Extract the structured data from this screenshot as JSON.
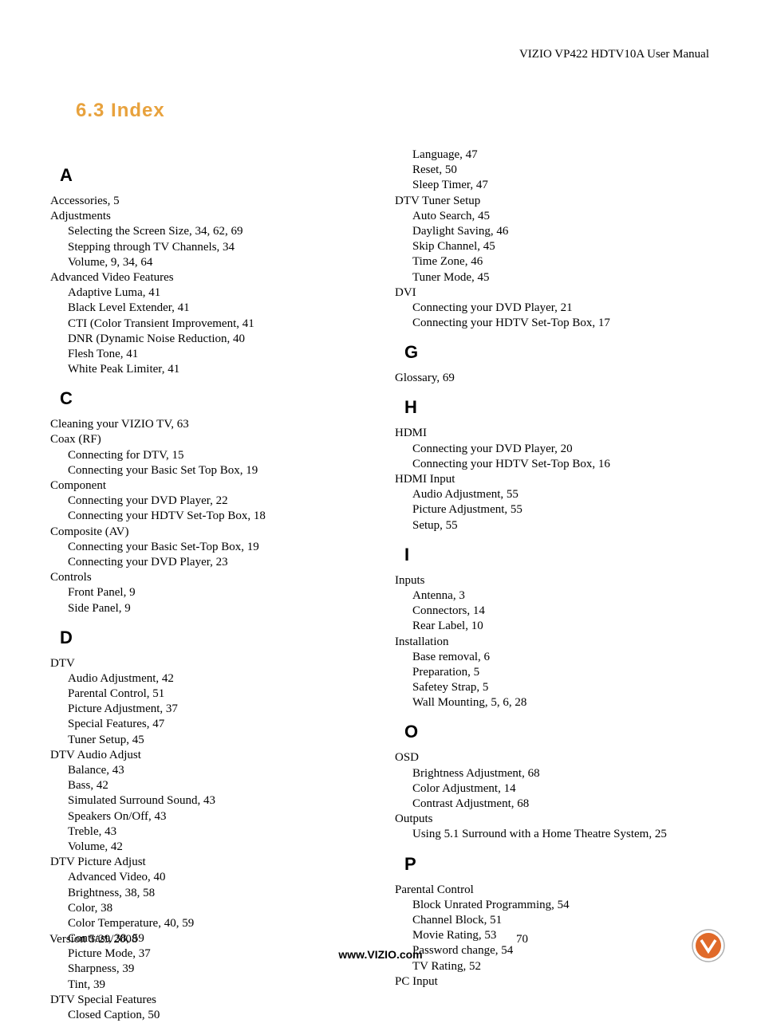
{
  "header": "VIZIO VP422 HDTV10A User Manual",
  "section_title": "6.3 Index",
  "section_title_color": "#e8a23d",
  "colors": {
    "text": "#000000",
    "accent": "#e8a23d",
    "logo_fill": "#e06a2a",
    "logo_border": "#b0b0b0"
  },
  "col1": [
    {
      "type": "letter",
      "text": "A"
    },
    {
      "type": "top",
      "text": "Accessories, 5"
    },
    {
      "type": "top",
      "text": "Adjustments"
    },
    {
      "type": "sub",
      "text": "Selecting the Screen Size, 34, 62, 69"
    },
    {
      "type": "sub",
      "text": "Stepping through TV Channels, 34"
    },
    {
      "type": "sub",
      "text": "Volume, 9, 34, 64"
    },
    {
      "type": "top",
      "text": "Advanced Video Features"
    },
    {
      "type": "sub",
      "text": "Adaptive Luma, 41"
    },
    {
      "type": "sub",
      "text": "Black Level Extender, 41"
    },
    {
      "type": "sub",
      "text": "CTI (Color Transient Improvement, 41"
    },
    {
      "type": "sub",
      "text": "DNR (Dynamic Noise Reduction, 40"
    },
    {
      "type": "sub",
      "text": "Flesh Tone, 41"
    },
    {
      "type": "sub",
      "text": "White Peak Limiter, 41"
    },
    {
      "type": "letter",
      "text": "C"
    },
    {
      "type": "top",
      "text": "Cleaning your VIZIO TV, 63"
    },
    {
      "type": "top",
      "text": "Coax (RF)"
    },
    {
      "type": "sub",
      "text": "Connecting for DTV, 15"
    },
    {
      "type": "sub",
      "text": "Connecting your Basic Set Top Box, 19"
    },
    {
      "type": "top",
      "text": "Component"
    },
    {
      "type": "sub",
      "text": "Connecting your DVD Player, 22"
    },
    {
      "type": "sub",
      "text": "Connecting your HDTV Set-Top Box, 18"
    },
    {
      "type": "top",
      "text": "Composite (AV)"
    },
    {
      "type": "sub",
      "text": "Connecting your Basic Set-Top Box, 19"
    },
    {
      "type": "sub",
      "text": "Connecting your DVD Player, 23"
    },
    {
      "type": "top",
      "text": "Controls"
    },
    {
      "type": "sub",
      "text": "Front Panel, 9"
    },
    {
      "type": "sub",
      "text": "Side Panel, 9"
    },
    {
      "type": "letter",
      "text": "D"
    },
    {
      "type": "top",
      "text": "DTV"
    },
    {
      "type": "sub",
      "text": "Audio Adjustment, 42"
    },
    {
      "type": "sub",
      "text": "Parental Control, 51"
    },
    {
      "type": "sub",
      "text": "Picture Adjustment, 37"
    },
    {
      "type": "sub",
      "text": "Special Features, 47"
    },
    {
      "type": "sub",
      "text": "Tuner Setup, 45"
    },
    {
      "type": "top",
      "text": "DTV Audio Adjust"
    },
    {
      "type": "sub",
      "text": "Balance, 43"
    },
    {
      "type": "sub",
      "text": "Bass, 42"
    },
    {
      "type": "sub",
      "text": "Simulated Surround Sound, 43"
    },
    {
      "type": "sub",
      "text": "Speakers On/Off, 43"
    },
    {
      "type": "sub",
      "text": "Treble, 43"
    },
    {
      "type": "sub",
      "text": "Volume, 42"
    },
    {
      "type": "top",
      "text": "DTV Picture Adjust"
    },
    {
      "type": "sub",
      "text": "Advanced Video, 40"
    },
    {
      "type": "sub",
      "text": "Brightness, 38, 58"
    },
    {
      "type": "sub",
      "text": "Color, 38"
    },
    {
      "type": "sub",
      "text": "Color Temperature, 40, 59"
    },
    {
      "type": "sub",
      "text": "Contrast, 38, 59"
    },
    {
      "type": "sub",
      "text": "Picture Mode, 37"
    },
    {
      "type": "sub",
      "text": "Sharpness, 39"
    },
    {
      "type": "sub",
      "text": "Tint, 39"
    },
    {
      "type": "top",
      "text": "DTV Special Features"
    },
    {
      "type": "sub",
      "text": "Closed Caption, 50"
    }
  ],
  "col2": [
    {
      "type": "sub",
      "text": "Language, 47"
    },
    {
      "type": "sub",
      "text": "Reset, 50"
    },
    {
      "type": "sub",
      "text": "Sleep Timer, 47"
    },
    {
      "type": "top",
      "text": "DTV Tuner Setup"
    },
    {
      "type": "sub",
      "text": "Auto Search, 45"
    },
    {
      "type": "sub",
      "text": "Daylight Saving, 46"
    },
    {
      "type": "sub",
      "text": "Skip Channel, 45"
    },
    {
      "type": "sub",
      "text": "Time Zone, 46"
    },
    {
      "type": "sub",
      "text": "Tuner Mode, 45"
    },
    {
      "type": "top",
      "text": "DVI"
    },
    {
      "type": "sub",
      "text": "Connecting your DVD Player, 21"
    },
    {
      "type": "sub",
      "text": "Connecting your HDTV Set-Top Box, 17"
    },
    {
      "type": "letter",
      "text": "G"
    },
    {
      "type": "top",
      "text": "Glossary, 69"
    },
    {
      "type": "letter",
      "text": "H"
    },
    {
      "type": "top",
      "text": "HDMI"
    },
    {
      "type": "sub",
      "text": "Connecting your DVD Player, 20"
    },
    {
      "type": "sub",
      "text": "Connecting your HDTV Set-Top Box, 16"
    },
    {
      "type": "top",
      "text": "HDMI Input"
    },
    {
      "type": "sub",
      "text": "Audio Adjustment, 55"
    },
    {
      "type": "sub",
      "text": "Picture Adjustment, 55"
    },
    {
      "type": "sub",
      "text": "Setup, 55"
    },
    {
      "type": "letter",
      "text": "I"
    },
    {
      "type": "top",
      "text": "Inputs"
    },
    {
      "type": "sub",
      "text": "Antenna, 3"
    },
    {
      "type": "sub",
      "text": "Connectors, 14"
    },
    {
      "type": "sub",
      "text": "Rear Label, 10"
    },
    {
      "type": "top",
      "text": "Installation"
    },
    {
      "type": "sub",
      "text": "Base removal, 6"
    },
    {
      "type": "sub",
      "text": "Preparation, 5"
    },
    {
      "type": "sub",
      "text": "Safetey Strap, 5"
    },
    {
      "type": "sub",
      "text": "Wall Mounting, 5, 6, 28"
    },
    {
      "type": "letter",
      "text": "O"
    },
    {
      "type": "top",
      "text": "OSD"
    },
    {
      "type": "sub",
      "text": "Brightness Adjustment, 68"
    },
    {
      "type": "sub",
      "text": "Color Adjustment, 14"
    },
    {
      "type": "sub",
      "text": "Contrast Adjustment, 68"
    },
    {
      "type": "top",
      "text": "Outputs"
    },
    {
      "type": "sub",
      "text": "Using 5.1 Surround with a Home Theatre System, 25"
    },
    {
      "type": "letter",
      "text": "P"
    },
    {
      "type": "top",
      "text": "Parental Control"
    },
    {
      "type": "sub",
      "text": "Block Unrated Programming, 54"
    },
    {
      "type": "sub",
      "text": "Channel Block, 51"
    },
    {
      "type": "sub",
      "text": "Movie Rating, 53"
    },
    {
      "type": "sub",
      "text": "Password change, 54"
    },
    {
      "type": "sub",
      "text": "TV Rating, 52"
    },
    {
      "type": "top",
      "text": "PC Input"
    }
  ],
  "footer": {
    "version": "Version 5/29/2008",
    "page": "70",
    "site": "www.VIZIO.com"
  }
}
